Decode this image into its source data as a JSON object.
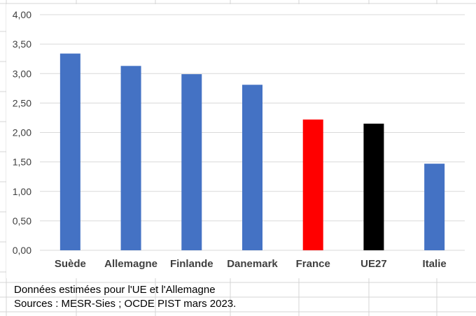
{
  "chart_data": {
    "type": "bar",
    "title": "",
    "xlabel": "",
    "ylabel": "",
    "categories": [
      "Suède",
      "Allemagne",
      "Finlande",
      "Danemark",
      "France",
      "UE27",
      "Italie"
    ],
    "values": [
      3.34,
      3.13,
      2.99,
      2.81,
      2.22,
      2.15,
      1.47
    ],
    "bar_colors": [
      "#4472C4",
      "#4472C4",
      "#4472C4",
      "#4472C4",
      "#FF0000",
      "#000000",
      "#4472C4"
    ],
    "ylim": [
      0,
      4
    ],
    "yticks": [
      "0,00",
      "0,50",
      "1,00",
      "1,50",
      "2,00",
      "2,50",
      "3,00",
      "3,50",
      "4,00"
    ],
    "grid": true,
    "legend": "none"
  },
  "notes": {
    "line1": "Données estimées pour l'UE et l'Allemagne",
    "line2": "Sources : MESR-Sies ; OCDE PIST mars 2023."
  },
  "colors": {
    "gridline": "#d9d9d9",
    "sheet_grid": "#d4d4d4",
    "tick_text": "#404040"
  }
}
